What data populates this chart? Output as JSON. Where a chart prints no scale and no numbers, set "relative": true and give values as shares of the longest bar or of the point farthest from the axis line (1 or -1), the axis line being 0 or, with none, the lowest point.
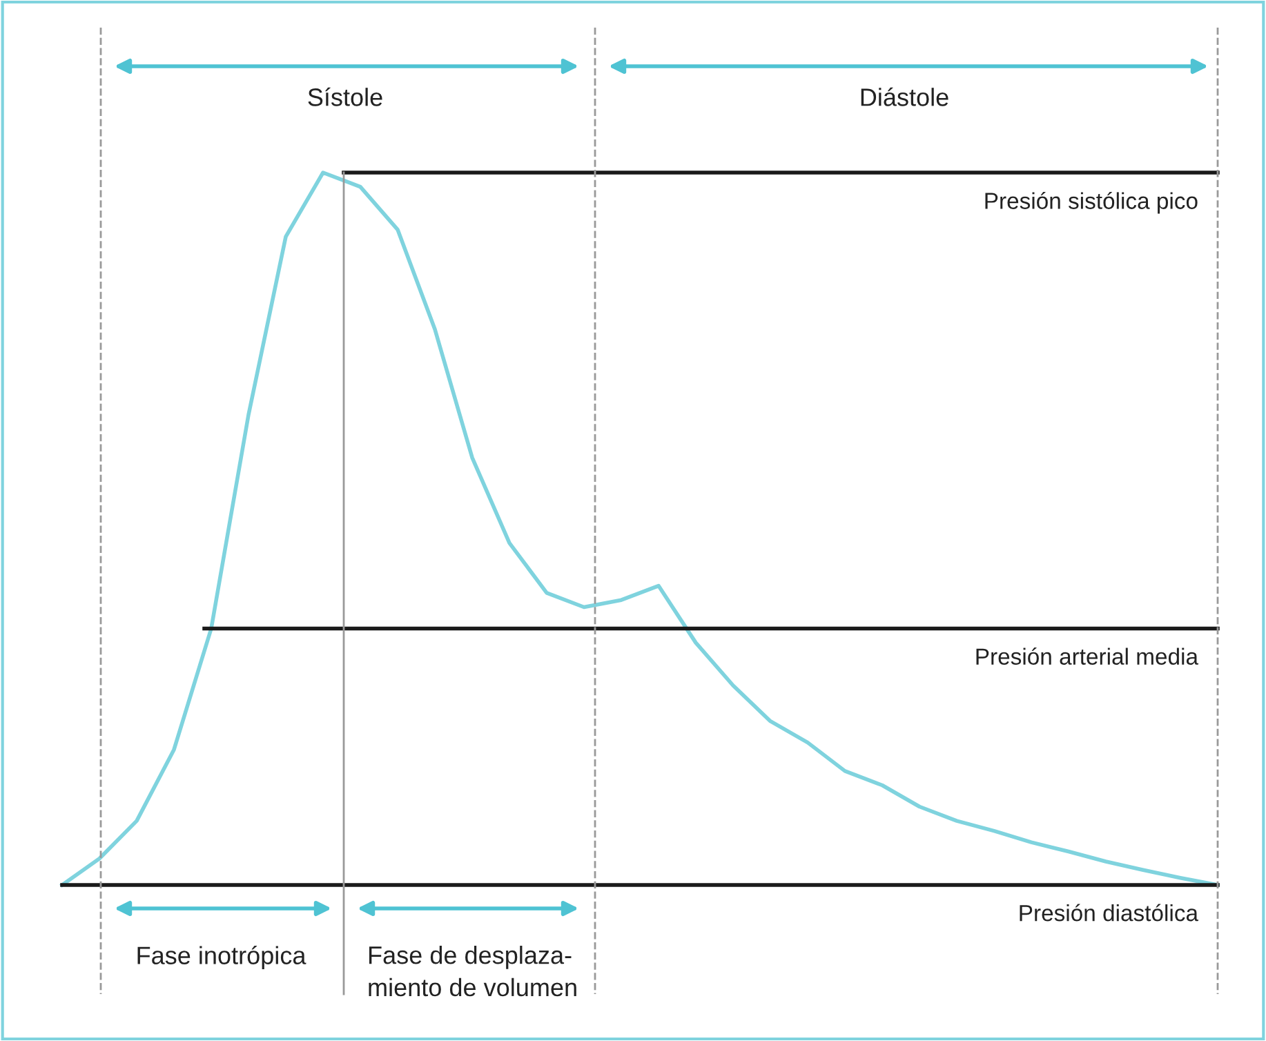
{
  "chart_data": {
    "type": "line",
    "relative": true,
    "categories": [
      null,
      null,
      null,
      null,
      null,
      null,
      null,
      null,
      null,
      null,
      null,
      null,
      null,
      null,
      null,
      null,
      null,
      null,
      null,
      null,
      null,
      null,
      null,
      null,
      null,
      null,
      null,
      null,
      null,
      null,
      null,
      null
    ],
    "series": [
      {
        "color": "#7fd3de",
        "values": [
          0,
          0.037,
          0.09,
          0.19,
          0.36,
          0.66,
          0.91,
          1,
          0.98,
          0.92,
          0.78,
          0.6,
          0.48,
          0.41,
          0.39,
          0.4,
          0.42,
          0.34,
          0.28,
          0.23,
          0.2,
          0.16,
          0.14,
          0.11,
          0.09,
          0.076,
          0.06,
          0.047,
          0.033,
          0.021,
          0.01,
          0
        ]
      }
    ],
    "ref_lines": [
      {
        "axis": "y",
        "value": 1,
        "label": "Presión sistólica pico",
        "color": "#1a1a1a"
      },
      {
        "axis": "y",
        "value": 0.36,
        "label": "Presión arterial media",
        "color": "#1a1a1a"
      },
      {
        "axis": "y",
        "value": 0,
        "label": "Presión diastólica",
        "color": "#1a1a1a"
      }
    ],
    "annotations": [
      "Sístole",
      "Diástole",
      "Fase inotrópica",
      "Fase de desplaza-\nmiento de volumen"
    ],
    "marker": "none",
    "line_style": "solid"
  }
}
